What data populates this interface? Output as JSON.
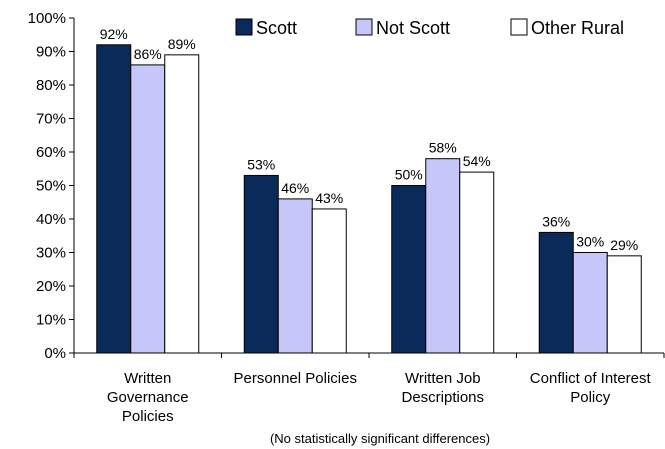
{
  "chart_data": {
    "type": "bar",
    "categories": [
      [
        "Written",
        "Governance",
        "Policies"
      ],
      [
        "Personnel Policies"
      ],
      [
        "Written Job",
        "Descriptions"
      ],
      [
        "Conflict of Interest",
        "Policy"
      ]
    ],
    "series": [
      {
        "name": "Scott",
        "values": [
          92,
          53,
          50,
          36
        ],
        "labels": [
          "92%",
          "53%",
          "50%",
          "36%"
        ],
        "color": "#0a2a5a"
      },
      {
        "name": "Not Scott",
        "values": [
          86,
          46,
          58,
          30
        ],
        "labels": [
          "86%",
          "46%",
          "58%",
          "30%"
        ],
        "color": "#c7c6f8"
      },
      {
        "name": "Other Rural",
        "values": [
          89,
          43,
          54,
          29
        ],
        "labels": [
          "89%",
          "43%",
          "54%",
          "29%"
        ],
        "color": "#ffffff"
      }
    ],
    "yticks": [
      "0%",
      "10%",
      "20%",
      "30%",
      "40%",
      "50%",
      "60%",
      "70%",
      "80%",
      "90%",
      "100%"
    ],
    "ylim": [
      0,
      100
    ],
    "grid": false,
    "legend_position": "top-right",
    "note": "(No statistically significant differences)"
  }
}
